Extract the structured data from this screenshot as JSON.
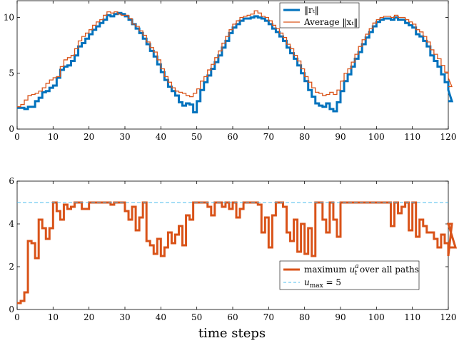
{
  "colors": {
    "blue": "#0072bd",
    "orange": "#d95319",
    "dashed": "#4dbeee",
    "axis": "#000000"
  },
  "chart_data": [
    {
      "type": "line",
      "step": true,
      "xlim": [
        0,
        120
      ],
      "ylim": [
        0,
        11.5
      ],
      "xticks": [
        0,
        10,
        20,
        30,
        40,
        50,
        60,
        70,
        80,
        90,
        100,
        110,
        120
      ],
      "yticks": [
        0,
        5,
        10
      ],
      "legend": {
        "position": "top-right"
      },
      "series": [
        {
          "name": "‖r_t‖",
          "legend_label": "‖rₜ‖",
          "color": "#0072bd",
          "width": "thick",
          "y": [
            1.9,
            1.9,
            1.8,
            2.0,
            2.0,
            2.5,
            2.8,
            3.3,
            3.4,
            3.7,
            3.9,
            4.6,
            5.3,
            5.6,
            5.7,
            6.1,
            6.6,
            7.4,
            7.7,
            8.1,
            8.5,
            8.9,
            9.2,
            9.5,
            9.8,
            10.2,
            10.1,
            10.3,
            10.4,
            10.3,
            10.1,
            9.8,
            9.4,
            9.0,
            8.6,
            8.1,
            7.6,
            7.0,
            6.5,
            5.8,
            5.1,
            4.4,
            3.8,
            3.4,
            3.0,
            2.4,
            2.1,
            2.3,
            2.2,
            1.5,
            2.5,
            3.5,
            4.2,
            4.8,
            5.4,
            6.0,
            6.6,
            7.3,
            7.9,
            8.6,
            9.1,
            9.4,
            9.7,
            9.9,
            9.9,
            10.0,
            10.1,
            10.0,
            9.9,
            9.7,
            9.4,
            9.0,
            8.7,
            8.3,
            7.9,
            7.3,
            6.8,
            6.3,
            5.7,
            5.0,
            4.3,
            3.5,
            2.9,
            2.3,
            2.1,
            2.0,
            2.3,
            1.8,
            1.6,
            2.4,
            3.4,
            4.3,
            4.9,
            5.6,
            6.3,
            6.9,
            7.6,
            8.2,
            8.7,
            9.2,
            9.6,
            9.8,
            9.9,
            9.9,
            9.8,
            10.0,
            9.8,
            9.8,
            9.5,
            9.3,
            9.1,
            8.5,
            8.3,
            7.9,
            7.4,
            6.6,
            6.1,
            5.6,
            4.9,
            4.2,
            3.5,
            2.5
          ]
        },
        {
          "name": "Average ‖x_t‖",
          "legend_label": "Average ‖xₜ‖",
          "color": "#d95319",
          "width": "thin",
          "y": [
            2.0,
            2.2,
            2.6,
            3.0,
            3.1,
            3.2,
            3.4,
            3.7,
            4.1,
            4.4,
            4.6,
            4.7,
            5.6,
            6.2,
            6.4,
            6.6,
            7.2,
            7.9,
            8.3,
            8.6,
            8.9,
            9.3,
            9.6,
            9.8,
            10.2,
            10.5,
            10.4,
            10.5,
            10.3,
            10.2,
            10.2,
            9.9,
            9.4,
            9.2,
            8.8,
            8.4,
            7.8,
            7.3,
            6.9,
            6.2,
            5.4,
            4.7,
            4.2,
            3.7,
            3.4,
            3.3,
            3.2,
            3.0,
            2.9,
            3.2,
            3.6,
            4.3,
            4.7,
            5.3,
            5.8,
            6.4,
            7.0,
            7.7,
            8.3,
            8.9,
            9.4,
            9.7,
            10.0,
            10.1,
            10.2,
            10.3,
            10.6,
            10.4,
            10.1,
            10.0,
            9.7,
            9.3,
            9.0,
            8.6,
            8.2,
            7.6,
            7.2,
            6.6,
            6.1,
            5.4,
            4.7,
            4.2,
            3.7,
            3.3,
            3.2,
            3.0,
            3.1,
            3.3,
            3.1,
            3.5,
            4.3,
            5.0,
            5.4,
            6.0,
            6.7,
            7.4,
            8.0,
            8.5,
            9.0,
            9.5,
            9.8,
            10.0,
            10.1,
            10.1,
            10.0,
            10.2,
            10.0,
            10.0,
            9.8,
            9.6,
            9.4,
            8.9,
            8.7,
            8.3,
            7.8,
            7.1,
            6.7,
            6.3,
            5.7,
            5.1,
            4.6,
            3.8
          ]
        }
      ]
    },
    {
      "type": "line",
      "step": true,
      "xlim": [
        0,
        120
      ],
      "ylim": [
        0,
        6
      ],
      "xticks": [
        0,
        10,
        20,
        30,
        40,
        50,
        60,
        70,
        80,
        90,
        100,
        110,
        120
      ],
      "yticks": [
        0,
        2,
        4,
        6
      ],
      "xlabel": "time steps",
      "legend": {
        "position": "bottom-right"
      },
      "series": [
        {
          "name": "maximum u_t^a over all paths",
          "legend_main": "maximum ",
          "legend_sym": "u",
          "legend_sub": "t",
          "legend_sup": "a",
          "legend_tail": " over all paths",
          "color": "#d95319",
          "width": "thick",
          "y": [
            0.3,
            0.4,
            0.8,
            3.2,
            3.1,
            2.4,
            4.2,
            3.8,
            3.3,
            3.8,
            5.0,
            4.6,
            4.2,
            4.9,
            4.7,
            4.8,
            5.0,
            5.0,
            4.7,
            4.7,
            5.0,
            5.0,
            5.0,
            5.0,
            5.0,
            5.0,
            4.9,
            5.0,
            5.0,
            5.0,
            4.6,
            4.2,
            4.8,
            3.7,
            4.3,
            5.0,
            3.2,
            3.0,
            2.6,
            3.3,
            2.5,
            2.9,
            3.6,
            3.1,
            3.5,
            3.9,
            3.0,
            4.4,
            4.2,
            5.0,
            5.0,
            5.0,
            5.0,
            4.8,
            4.4,
            5.0,
            5.0,
            4.8,
            5.0,
            4.7,
            5.0,
            4.3,
            4.7,
            5.0,
            5.0,
            5.0,
            5.0,
            4.9,
            3.6,
            4.3,
            2.9,
            4.4,
            5.0,
            5.0,
            4.8,
            3.6,
            3.2,
            4.2,
            2.7,
            4.0,
            2.6,
            3.8,
            2.5,
            5.0,
            5.0,
            4.2,
            3.6,
            5.0,
            4.2,
            3.4,
            5.0,
            5.0,
            5.0,
            5.0,
            5.0,
            5.0,
            5.0,
            5.0,
            5.0,
            5.0,
            5.0,
            5.0,
            5.0,
            5.0,
            3.9,
            5.0,
            4.5,
            4.8,
            5.0,
            3.7,
            5.0,
            3.4,
            4.2,
            3.9,
            3.6,
            3.6,
            3.3,
            2.9,
            3.5,
            3.1,
            2.5,
            4.0,
            2.9
          ]
        },
        {
          "name": "u_max = 5",
          "legend_sym": "u",
          "legend_sub": "max",
          "legend_tail": " = 5",
          "color": "#4dbeee",
          "dashed": true,
          "value": 5
        }
      ]
    }
  ]
}
